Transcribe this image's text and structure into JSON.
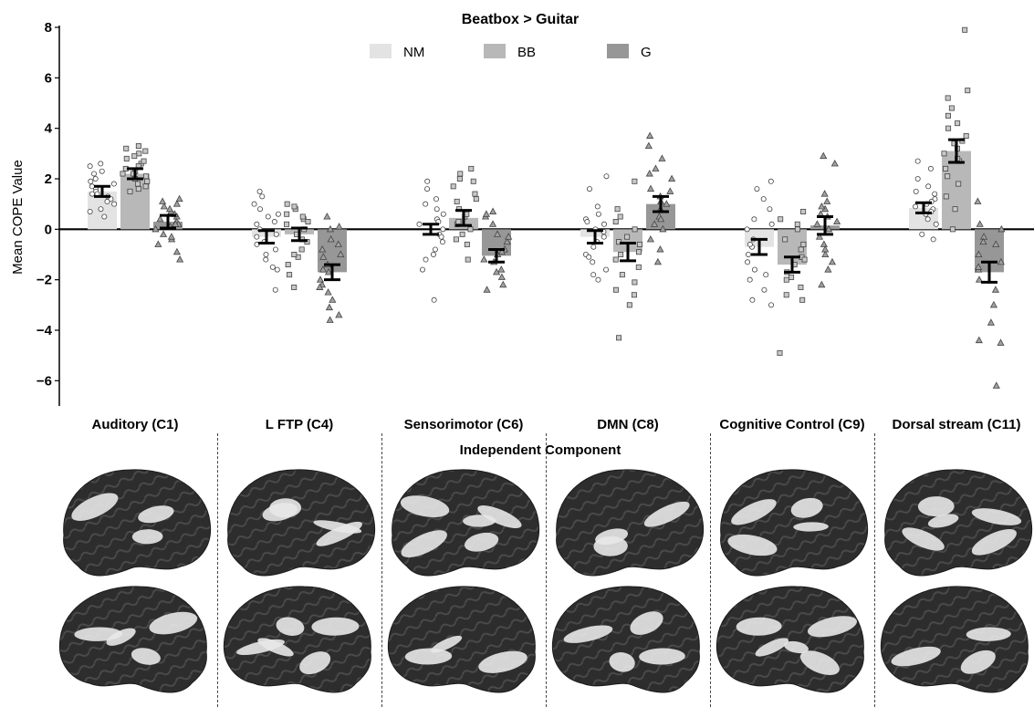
{
  "chart_data": {
    "type": "bar",
    "title": "Beatbox > Guitar",
    "xlabel": "Independent Component",
    "ylabel": "Mean COPE Value",
    "ylim": [
      -7,
      8
    ],
    "yticks": [
      8,
      6,
      4,
      2,
      0,
      -2,
      -4,
      -6
    ],
    "legend_position": "top-center",
    "categories": [
      "Auditory (C1)",
      "L FTP (C4)",
      "Sensorimotor (C6)",
      "DMN (C8)",
      "Cognitive Control (C9)",
      "Dorsal stream (C11)"
    ],
    "series": [
      {
        "name": "NM",
        "color": "#e3e3e3",
        "marker": "circle",
        "values": [
          1.5,
          -0.3,
          0.0,
          -0.3,
          -0.7,
          0.85
        ],
        "errors": [
          0.2,
          0.25,
          0.2,
          0.25,
          0.3,
          0.2
        ],
        "points": [
          [
            2.6,
            2.3,
            2.0,
            2.5,
            2.2,
            1.9,
            1.8,
            1.6,
            1.5,
            1.4,
            1.3,
            1.2,
            1.0,
            0.8,
            0.5,
            1.1,
            1.7,
            1.4,
            0.7
          ],
          [
            1.5,
            1.3,
            1.0,
            0.6,
            0.3,
            0.0,
            -0.2,
            -0.5,
            -1.0,
            -1.5,
            -0.8,
            -1.2,
            0.8,
            -2.4,
            -1.6,
            -0.6,
            0.2,
            0.5,
            -0.3
          ],
          [
            1.9,
            1.6,
            1.2,
            0.8,
            0.4,
            0.2,
            0.0,
            -0.2,
            -0.5,
            -0.8,
            -1.2,
            -1.6,
            -2.8,
            0.6,
            -1.0,
            0.3,
            -0.3,
            1.0
          ],
          [
            2.1,
            1.6,
            0.9,
            0.6,
            0.4,
            0.2,
            0.0,
            -0.3,
            -0.5,
            -0.7,
            -1.0,
            -1.3,
            -1.6,
            -1.8,
            -2.0,
            0.3,
            -0.1,
            -1.1
          ],
          [
            1.9,
            1.6,
            1.2,
            0.8,
            0.4,
            0.0,
            -0.4,
            -0.7,
            -1.0,
            -1.3,
            -1.6,
            -2.0,
            -2.4,
            -2.8,
            -3.0,
            -0.6,
            0.2,
            -1.8
          ],
          [
            2.7,
            2.4,
            2.0,
            1.7,
            1.4,
            1.2,
            1.0,
            0.8,
            0.6,
            0.4,
            0.2,
            -0.2,
            -0.4,
            0.9,
            1.5,
            0.7,
            1.1
          ]
        ]
      },
      {
        "name": "BB",
        "color": "#b8b8b8",
        "marker": "square",
        "values": [
          2.2,
          -0.2,
          0.45,
          -0.9,
          -1.4,
          3.1
        ],
        "errors": [
          0.2,
          0.25,
          0.3,
          0.35,
          0.3,
          0.45
        ],
        "points": [
          [
            3.3,
            3.1,
            3.0,
            2.8,
            2.6,
            2.5,
            2.4,
            2.3,
            2.2,
            2.1,
            2.0,
            1.9,
            1.8,
            1.6,
            1.5,
            2.7,
            2.9,
            2.2,
            1.7,
            3.2
          ],
          [
            1.0,
            0.8,
            0.6,
            0.4,
            0.2,
            0.0,
            -0.2,
            -0.5,
            -0.8,
            -1.1,
            -1.4,
            -1.8,
            -2.3,
            0.9,
            0.3,
            -0.4,
            -1.0,
            0.5
          ],
          [
            2.4,
            2.2,
            2.0,
            1.7,
            1.4,
            1.1,
            0.8,
            0.5,
            0.2,
            0.0,
            -0.2,
            -0.6,
            -1.2,
            1.9,
            0.6,
            -0.4,
            1.2,
            0.3
          ],
          [
            1.9,
            0.8,
            0.5,
            0.0,
            -0.3,
            -0.6,
            -0.9,
            -1.2,
            -1.5,
            -1.8,
            -2.1,
            -2.4,
            -2.6,
            -3.0,
            -4.3,
            -0.5,
            -1.0,
            0.3
          ],
          [
            0.7,
            0.4,
            0.0,
            -0.4,
            -0.8,
            -1.1,
            -1.4,
            -1.7,
            -2.0,
            -2.3,
            -2.6,
            -2.8,
            -4.9,
            -0.6,
            -1.2,
            -1.9,
            0.2
          ],
          [
            7.9,
            5.5,
            5.2,
            4.8,
            4.5,
            4.2,
            4.0,
            3.7,
            3.4,
            3.2,
            3.0,
            2.7,
            2.4,
            2.1,
            1.8,
            1.3,
            0.8,
            0.0,
            2.8,
            3.5
          ]
        ]
      },
      {
        "name": "G",
        "color": "#979797",
        "marker": "triangle",
        "values": [
          0.3,
          -1.7,
          -1.05,
          1.0,
          0.15,
          -1.7
        ],
        "errors": [
          0.25,
          0.3,
          0.25,
          0.3,
          0.35,
          0.4
        ],
        "points": [
          [
            1.2,
            1.0,
            0.9,
            0.7,
            0.5,
            0.4,
            0.3,
            0.2,
            0.1,
            0.0,
            -0.2,
            -0.4,
            -0.6,
            -0.9,
            -1.2,
            0.8,
            0.6,
            -0.3,
            1.1,
            0.2
          ],
          [
            0.5,
            0.0,
            -0.4,
            -0.8,
            -1.1,
            -1.4,
            -1.7,
            -2.0,
            -2.2,
            -2.5,
            -2.8,
            -3.1,
            -3.4,
            -3.6,
            -1.6,
            -0.6,
            -2.3,
            0.1,
            -1.0
          ],
          [
            0.7,
            0.5,
            0.2,
            -0.2,
            -0.5,
            -0.8,
            -1.0,
            -1.3,
            -1.6,
            -1.9,
            -2.2,
            -2.4,
            0.6,
            -0.3,
            -1.2,
            -1.7,
            -0.9
          ],
          [
            3.7,
            3.3,
            2.8,
            2.4,
            2.0,
            1.6,
            1.3,
            1.0,
            0.8,
            0.5,
            0.2,
            0.0,
            -0.4,
            -0.8,
            -1.3,
            1.1,
            0.4,
            2.2,
            1.5
          ],
          [
            2.9,
            2.6,
            1.4,
            1.1,
            0.8,
            0.5,
            0.2,
            0.0,
            -0.3,
            -0.6,
            -1.0,
            -1.3,
            -1.6,
            -2.2,
            0.9,
            0.3,
            -0.8,
            0.6
          ],
          [
            1.1,
            0.2,
            0.0,
            -0.3,
            -0.6,
            -1.0,
            -1.3,
            -1.6,
            -2.0,
            -2.4,
            -3.0,
            -3.7,
            -4.4,
            -4.5,
            -6.2,
            -0.5,
            -1.5
          ]
        ]
      }
    ]
  }
}
